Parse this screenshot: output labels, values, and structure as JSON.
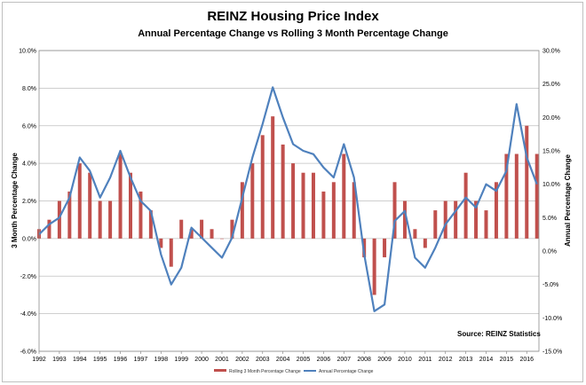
{
  "chart_data": {
    "type": "bar+line",
    "title": "REINZ Housing Price Index",
    "subtitle": "Annual Percentage Change vs Rolling 3 Month Percentage Change",
    "ylabel_left": "3 Month Percentage Change",
    "ylabel_right": "Annual Percentage Change",
    "source": "Source: REINZ Statistics",
    "ylim_left": [
      -6,
      10
    ],
    "ylim_right": [
      -15,
      30
    ],
    "left_ticks": [
      "10.0%",
      "8.0%",
      "6.0%",
      "4.0%",
      "2.0%",
      "0.0%",
      "-2.0%",
      "-4.0%",
      "-6.0%"
    ],
    "right_ticks": [
      "30.0%",
      "25.0%",
      "20.0%",
      "15.0%",
      "10.0%",
      "5.0%",
      "0.0%",
      "-5.0%",
      "-10.0%",
      "-15.0%"
    ],
    "x_ticks": [
      "1992",
      "1993",
      "1994",
      "1995",
      "1996",
      "1997",
      "1998",
      "1999",
      "2000",
      "2001",
      "2002",
      "2003",
      "2004",
      "2005",
      "2006",
      "2007",
      "2008",
      "2009",
      "2010",
      "2011",
      "2012",
      "2013",
      "2014",
      "2015",
      "2016"
    ],
    "x_range": [
      1992.0,
      2016.6
    ],
    "grid": true,
    "legend_position": "bottom",
    "series": [
      {
        "name": "Rolling 3 Month Percentage Change",
        "kind": "bar",
        "axis": "left",
        "color": "#c0504d",
        "x": [
          1992.0,
          1992.5,
          1993.0,
          1993.5,
          1994.0,
          1994.5,
          1995.0,
          1995.5,
          1996.0,
          1996.5,
          1997.0,
          1997.5,
          1998.0,
          1998.5,
          1999.0,
          1999.5,
          2000.0,
          2000.5,
          2001.0,
          2001.5,
          2002.0,
          2002.5,
          2003.0,
          2003.5,
          2004.0,
          2004.5,
          2005.0,
          2005.5,
          2006.0,
          2006.5,
          2007.0,
          2007.5,
          2008.0,
          2008.5,
          2009.0,
          2009.5,
          2010.0,
          2010.5,
          2011.0,
          2011.5,
          2012.0,
          2012.5,
          2013.0,
          2013.5,
          2014.0,
          2014.5,
          2015.0,
          2015.5,
          2016.0,
          2016.5
        ],
        "values": [
          0.5,
          1.0,
          2.0,
          2.5,
          4.0,
          3.5,
          2.0,
          2.0,
          4.5,
          3.5,
          2.5,
          1.5,
          -0.5,
          -1.5,
          1.0,
          0.5,
          1.0,
          0.5,
          0.0,
          1.0,
          3.0,
          4.0,
          5.5,
          6.5,
          5.0,
          4.0,
          3.5,
          3.5,
          2.5,
          3.0,
          4.5,
          3.0,
          -1.0,
          -3.0,
          -1.0,
          3.0,
          2.0,
          0.5,
          -0.5,
          1.5,
          2.0,
          2.0,
          3.5,
          2.0,
          1.5,
          3.0,
          4.5,
          4.5,
          6.0,
          4.5
        ]
      },
      {
        "name": "Annual Percentage Change",
        "kind": "line",
        "axis": "right",
        "color": "#4f81bd",
        "x": [
          1992.0,
          1992.5,
          1993.0,
          1993.5,
          1994.0,
          1994.5,
          1995.0,
          1995.5,
          1996.0,
          1996.5,
          1997.0,
          1997.5,
          1998.0,
          1998.5,
          1999.0,
          1999.5,
          2000.0,
          2000.5,
          2001.0,
          2001.5,
          2002.0,
          2002.5,
          2003.0,
          2003.5,
          2004.0,
          2004.5,
          2005.0,
          2005.5,
          2006.0,
          2006.5,
          2007.0,
          2007.5,
          2008.0,
          2008.5,
          2009.0,
          2009.5,
          2010.0,
          2010.5,
          2011.0,
          2011.5,
          2012.0,
          2012.5,
          2013.0,
          2013.5,
          2014.0,
          2014.5,
          2015.0,
          2015.5,
          2016.0,
          2016.5
        ],
        "values": [
          2.5,
          4.0,
          5.0,
          8.0,
          14.0,
          12.0,
          8.0,
          11.0,
          15.0,
          11.0,
          7.5,
          6.0,
          -0.5,
          -5.0,
          -2.5,
          3.5,
          2.0,
          0.5,
          -1.0,
          2.0,
          8.0,
          14.0,
          19.0,
          24.5,
          20.0,
          16.0,
          15.0,
          14.5,
          12.5,
          11.0,
          16.0,
          11.0,
          -0.5,
          -9.0,
          -8.0,
          4.5,
          6.0,
          -1.0,
          -2.5,
          0.5,
          4.0,
          6.0,
          8.0,
          6.5,
          10.0,
          9.0,
          12.0,
          22.0,
          14.0,
          10.0
        ]
      }
    ]
  }
}
